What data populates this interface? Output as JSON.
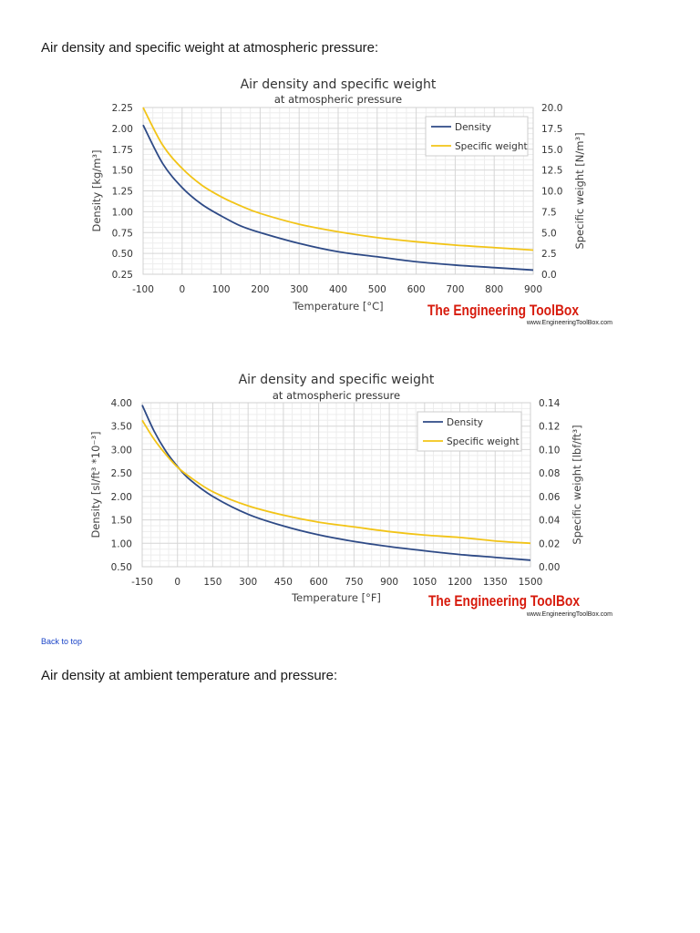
{
  "page": {
    "heading1": "Air density and specific weight at atmospheric pressure:",
    "back_to_top": "Back to top",
    "heading2": "Air density at ambient temperature and pressure:"
  },
  "colors": {
    "density": "#2e4a86",
    "specific_weight": "#f2c417",
    "brand": "#d71b0d"
  },
  "chart_data": [
    {
      "type": "line",
      "title": "Air density and specific weight",
      "subtitle": "at atmospheric pressure",
      "xlabel": "Temperature [°C]",
      "ylabel": "Density [kg/m³]",
      "y2label": "Specific weight [N/m³]",
      "xlim": [
        -100,
        900
      ],
      "xticks": [
        "-100",
        "0",
        "100",
        "200",
        "300",
        "400",
        "500",
        "600",
        "700",
        "800",
        "900"
      ],
      "ylim": [
        0.25,
        2.25
      ],
      "yticks": [
        "0.25",
        "0.50",
        "0.75",
        "1.00",
        "1.25",
        "1.50",
        "1.75",
        "2.00",
        "2.25"
      ],
      "y2lim": [
        0,
        20
      ],
      "y2ticks": [
        "0.0",
        "2.5",
        "5.0",
        "7.5",
        "10.0",
        "12.5",
        "15.0",
        "17.5",
        "20.0"
      ],
      "grid": true,
      "legend_position": "top-right",
      "brand": "The Engineering ToolBox",
      "brand_url": "www.EngineeringToolBox.com",
      "series": [
        {
          "name": "Density",
          "axis": "left",
          "color": "#2e4a86",
          "x": [
            -100,
            -50,
            0,
            50,
            100,
            150,
            200,
            300,
            400,
            500,
            600,
            700,
            800,
            900
          ],
          "values": [
            2.04,
            1.58,
            1.29,
            1.09,
            0.95,
            0.83,
            0.75,
            0.62,
            0.52,
            0.46,
            0.4,
            0.36,
            0.33,
            0.3
          ]
        },
        {
          "name": "Specific weight",
          "axis": "right",
          "color": "#f2c417",
          "x": [
            -100,
            -50,
            0,
            50,
            100,
            150,
            200,
            300,
            400,
            500,
            600,
            700,
            800,
            900
          ],
          "values": [
            20.0,
            15.5,
            12.7,
            10.7,
            9.3,
            8.2,
            7.3,
            6.0,
            5.1,
            4.4,
            3.9,
            3.5,
            3.2,
            2.9
          ]
        }
      ]
    },
    {
      "type": "line",
      "title": "Air density and specific weight",
      "subtitle": "at atmospheric pressure",
      "xlabel": "Temperature [°F]",
      "ylabel": "Density [sl/ft³ *10⁻³]",
      "y2label": "Specific weight [lbf/ft³]",
      "xlim": [
        -150,
        1500
      ],
      "xticks": [
        "-150",
        "0",
        "150",
        "300",
        "450",
        "600",
        "750",
        "900",
        "1050",
        "1200",
        "1350",
        "1500"
      ],
      "ylim": [
        0.5,
        4.0
      ],
      "yticks": [
        "0.50",
        "1.00",
        "1.50",
        "2.00",
        "2.50",
        "3.00",
        "3.50",
        "4.00"
      ],
      "y2lim": [
        0,
        0.14
      ],
      "y2ticks": [
        "0.00",
        "0.02",
        "0.04",
        "0.06",
        "0.08",
        "0.10",
        "0.12",
        "0.14"
      ],
      "grid": true,
      "legend_position": "top-right",
      "brand": "The Engineering ToolBox",
      "brand_url": "www.EngineeringToolBox.com",
      "series": [
        {
          "name": "Density",
          "axis": "left",
          "color": "#2e4a86",
          "x": [
            -150,
            -100,
            -50,
            0,
            50,
            150,
            300,
            450,
            600,
            750,
            900,
            1050,
            1200,
            1350,
            1500
          ],
          "values": [
            3.95,
            3.4,
            2.97,
            2.64,
            2.37,
            2.0,
            1.62,
            1.37,
            1.18,
            1.04,
            0.93,
            0.84,
            0.76,
            0.7,
            0.64
          ]
        },
        {
          "name": "Specific weight",
          "axis": "right",
          "color": "#f2c417",
          "x": [
            -150,
            -100,
            -50,
            0,
            50,
            150,
            300,
            450,
            600,
            750,
            900,
            1050,
            1200,
            1350,
            1500
          ],
          "values": [
            0.125,
            0.109,
            0.096,
            0.085,
            0.077,
            0.064,
            0.052,
            0.044,
            0.038,
            0.034,
            0.03,
            0.027,
            0.025,
            0.022,
            0.02
          ]
        }
      ]
    }
  ]
}
